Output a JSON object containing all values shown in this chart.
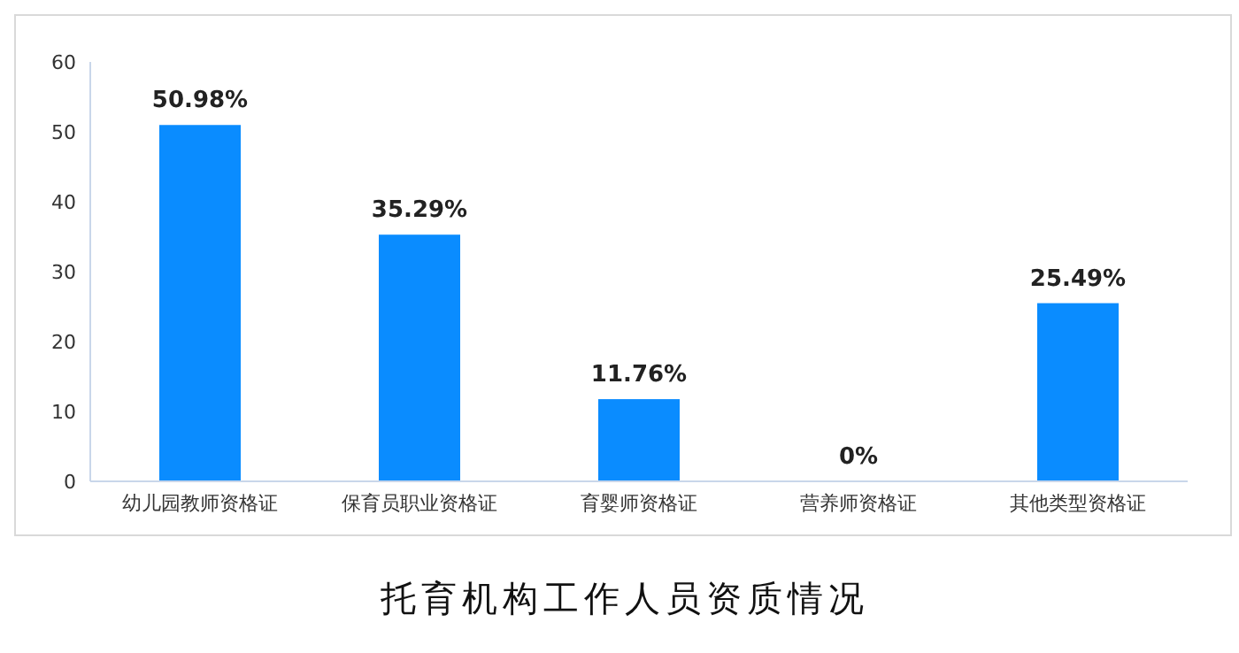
{
  "chart_data": {
    "type": "bar",
    "title": "托育机构工作人员资质情况",
    "categories": [
      "幼儿园教师资格证",
      "保育员职业资格证",
      "育婴师资格证",
      "营养师资格证",
      "其他类型资格证"
    ],
    "values": [
      50.98,
      35.29,
      11.76,
      0,
      25.49
    ],
    "value_labels": [
      "50.98%",
      "35.29%",
      "11.76%",
      "0%",
      "25.49%"
    ],
    "color": "#0a8cff",
    "ylim": [
      0,
      60
    ],
    "yticks": [
      0,
      10,
      20,
      30,
      40,
      50,
      60
    ],
    "grid": false,
    "legend": false
  }
}
